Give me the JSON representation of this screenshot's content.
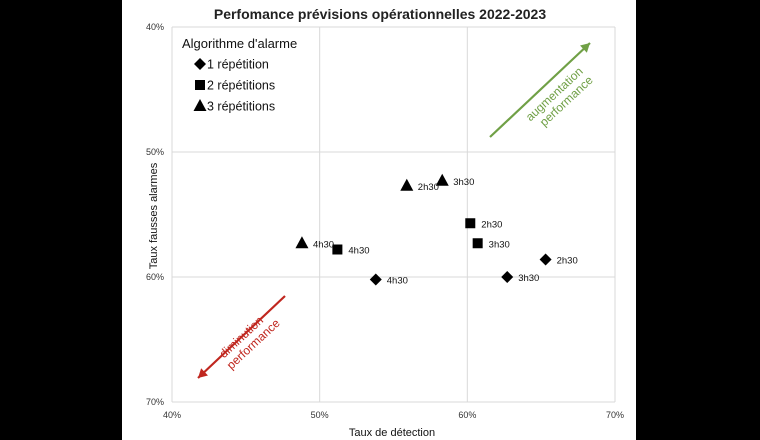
{
  "colors": {
    "background": "#000000",
    "plot_background": "#ffffff",
    "grid": "#d9d9d9",
    "marker": "#000000",
    "increase": "#70a046",
    "decrease": "#c0271f"
  },
  "chart_data": {
    "type": "scatter",
    "title": "Perfomance prévisions opérationnelles 2022-2023",
    "xlabel": "Taux de détection",
    "ylabel": "Taux fausses alarmes",
    "xlim": [
      40,
      70
    ],
    "ylim": [
      40,
      70
    ],
    "y_inverted": true,
    "x_ticks": [
      "40%",
      "50%",
      "60%",
      "70%"
    ],
    "y_ticks": [
      "40%",
      "50%",
      "60%",
      "70%"
    ],
    "grid": true,
    "legend_title": "Algorithme d'alarme",
    "legend_position": "top-left",
    "series": [
      {
        "name": "1 répétition",
        "marker": "diamond",
        "points": [
          {
            "x": 53.8,
            "y": 60.2,
            "label": "4h30"
          },
          {
            "x": 62.7,
            "y": 60.0,
            "label": "3h30"
          },
          {
            "x": 65.3,
            "y": 58.6,
            "label": "2h30"
          }
        ]
      },
      {
        "name": "2 répétitions",
        "marker": "square",
        "points": [
          {
            "x": 51.2,
            "y": 57.8,
            "label": "4h30"
          },
          {
            "x": 60.7,
            "y": 57.3,
            "label": "3h30"
          },
          {
            "x": 60.2,
            "y": 55.7,
            "label": "2h30"
          }
        ]
      },
      {
        "name": "3 répétitions",
        "marker": "triangle",
        "points": [
          {
            "x": 48.8,
            "y": 57.3,
            "label": "4h30"
          },
          {
            "x": 58.3,
            "y": 52.3,
            "label": "3h30"
          },
          {
            "x": 55.9,
            "y": 52.7,
            "label": "2h30"
          }
        ]
      }
    ],
    "annotations": [
      {
        "text_lines": [
          "augmentation",
          "performance"
        ],
        "direction": "up-right",
        "color": "#70a046"
      },
      {
        "text_lines": [
          "diminution",
          "performance"
        ],
        "direction": "down-left",
        "color": "#c0271f"
      }
    ]
  }
}
